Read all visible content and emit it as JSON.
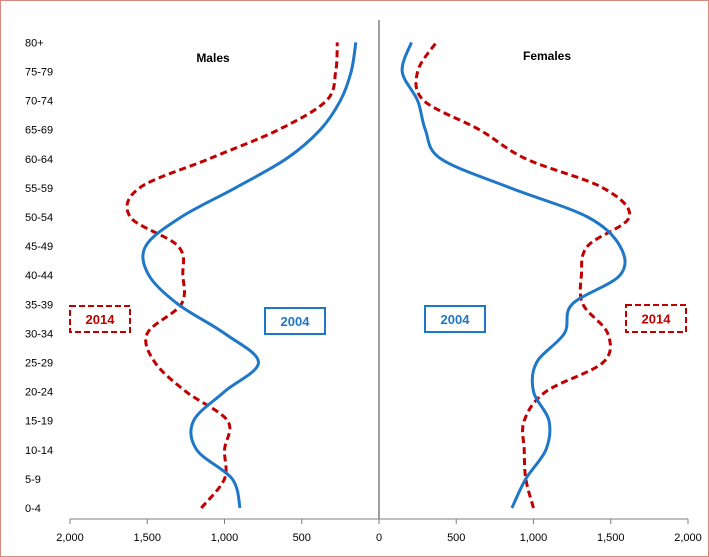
{
  "chart_data": {
    "type": "line",
    "title": "",
    "xlabel": "",
    "ylabel": "",
    "categories": [
      "0-4",
      "5-9",
      "10-14",
      "15-19",
      "20-24",
      "25-29",
      "30-34",
      "35-39",
      "40-44",
      "45-49",
      "50-54",
      "55-59",
      "60-64",
      "65-69",
      "70-74",
      "75-79",
      "80+"
    ],
    "x_ticks": [
      "2,000",
      "1,500",
      "1,000",
      "500",
      "0",
      "500",
      "1,000",
      "1,500",
      "2,000"
    ],
    "xlim": [
      -2000,
      2000
    ],
    "grid": false,
    "panels": [
      {
        "label": "Males",
        "side": "left"
      },
      {
        "label": "Females",
        "side": "right"
      }
    ],
    "series": [
      {
        "name": "2004",
        "color": "#1f77c8",
        "style": "solid",
        "males": [
          900,
          950,
          1180,
          1200,
          1000,
          780,
          1000,
          1300,
          1490,
          1510,
          1280,
          930,
          600,
          380,
          250,
          180,
          150
        ],
        "females": [
          860,
          950,
          1080,
          1100,
          1000,
          1020,
          1200,
          1250,
          1560,
          1560,
          1350,
          850,
          400,
          300,
          250,
          150,
          210
        ]
      },
      {
        "name": "2014",
        "color": "#c00000",
        "style": "dashed",
        "males": [
          1150,
          1000,
          1000,
          980,
          1250,
          1450,
          1500,
          1280,
          1270,
          1300,
          1610,
          1550,
          1100,
          650,
          340,
          280,
          270
        ],
        "females": [
          1000,
          950,
          940,
          940,
          1080,
          1450,
          1480,
          1320,
          1310,
          1350,
          1620,
          1450,
          950,
          650,
          290,
          250,
          370
        ]
      }
    ],
    "annotations": [
      {
        "text": "2014",
        "color": "#c00000",
        "border": "dashed",
        "side": "left-outer"
      },
      {
        "text": "2004",
        "color": "#1f77c8",
        "border": "solid",
        "side": "left-inner"
      },
      {
        "text": "2004",
        "color": "#1f77c8",
        "border": "solid",
        "side": "right-inner"
      },
      {
        "text": "2014",
        "color": "#c00000",
        "border": "dashed",
        "side": "right-outer"
      }
    ],
    "axis_color": "#7f7f7f"
  }
}
